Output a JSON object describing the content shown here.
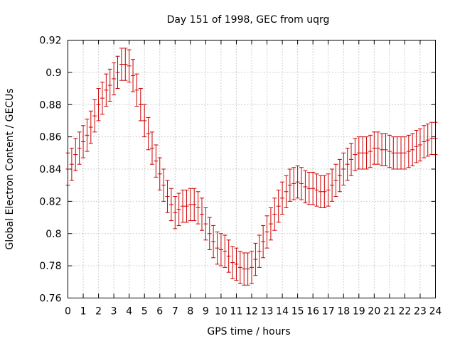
{
  "chart_data": {
    "type": "errorbar",
    "title": "Day 151 of 1998, GEC from uqrg",
    "xlabel": "GPS time / hours",
    "ylabel": "Global Electron Content / GECUs",
    "xlim": [
      0,
      24
    ],
    "ylim": [
      0.76,
      0.92
    ],
    "x_ticks": [
      "0",
      "1",
      "2",
      "3",
      "4",
      "5",
      "6",
      "7",
      "8",
      "9",
      "10",
      "11",
      "12",
      "13",
      "14",
      "15",
      "16",
      "17",
      "18",
      "19",
      "20",
      "21",
      "22",
      "23",
      "24"
    ],
    "y_ticks": [
      "0.76",
      "0.78",
      "0.8",
      "0.82",
      "0.84",
      "0.86",
      "0.88",
      "0.9",
      "0.92"
    ],
    "grid": true,
    "series": [
      {
        "name": "GEC",
        "color": "#cc0000",
        "x": [
          0,
          0.25,
          0.5,
          0.75,
          1,
          1.25,
          1.5,
          1.75,
          2,
          2.25,
          2.5,
          2.75,
          3,
          3.25,
          3.5,
          3.75,
          4,
          4.25,
          4.5,
          4.75,
          5,
          5.25,
          5.5,
          5.75,
          6,
          6.25,
          6.5,
          6.75,
          7,
          7.25,
          7.5,
          7.75,
          8,
          8.25,
          8.5,
          8.75,
          9,
          9.25,
          9.5,
          9.75,
          10,
          10.25,
          10.5,
          10.75,
          11,
          11.25,
          11.5,
          11.75,
          12,
          12.25,
          12.5,
          12.75,
          13,
          13.25,
          13.5,
          13.75,
          14,
          14.25,
          14.5,
          14.75,
          15,
          15.25,
          15.5,
          15.75,
          16,
          16.25,
          16.5,
          16.75,
          17,
          17.25,
          17.5,
          17.75,
          18,
          18.25,
          18.5,
          18.75,
          19,
          19.25,
          19.5,
          19.75,
          20,
          20.25,
          20.5,
          20.75,
          21,
          21.25,
          21.5,
          21.75,
          22,
          22.25,
          22.5,
          22.75,
          23,
          23.25,
          23.5,
          23.75,
          24
        ],
        "values": [
          0.84,
          0.843,
          0.849,
          0.853,
          0.857,
          0.861,
          0.866,
          0.873,
          0.88,
          0.884,
          0.889,
          0.892,
          0.896,
          0.9,
          0.905,
          0.905,
          0.904,
          0.898,
          0.889,
          0.88,
          0.87,
          0.862,
          0.853,
          0.845,
          0.837,
          0.83,
          0.823,
          0.818,
          0.813,
          0.815,
          0.817,
          0.817,
          0.818,
          0.818,
          0.816,
          0.812,
          0.806,
          0.8,
          0.795,
          0.791,
          0.79,
          0.789,
          0.786,
          0.782,
          0.781,
          0.779,
          0.778,
          0.778,
          0.779,
          0.784,
          0.789,
          0.795,
          0.801,
          0.806,
          0.812,
          0.817,
          0.822,
          0.826,
          0.83,
          0.831,
          0.832,
          0.831,
          0.829,
          0.828,
          0.828,
          0.827,
          0.826,
          0.826,
          0.827,
          0.83,
          0.833,
          0.836,
          0.84,
          0.843,
          0.846,
          0.849,
          0.85,
          0.85,
          0.85,
          0.851,
          0.853,
          0.853,
          0.852,
          0.852,
          0.851,
          0.85,
          0.85,
          0.85,
          0.85,
          0.851,
          0.852,
          0.854,
          0.855,
          0.857,
          0.858,
          0.859,
          0.859
        ],
        "errors": [
          0.01,
          0.01,
          0.01,
          0.01,
          0.01,
          0.01,
          0.01,
          0.01,
          0.01,
          0.01,
          0.01,
          0.01,
          0.01,
          0.01,
          0.01,
          0.01,
          0.01,
          0.01,
          0.01,
          0.01,
          0.01,
          0.01,
          0.01,
          0.01,
          0.01,
          0.01,
          0.01,
          0.01,
          0.01,
          0.01,
          0.01,
          0.01,
          0.01,
          0.01,
          0.01,
          0.01,
          0.01,
          0.01,
          0.01,
          0.01,
          0.01,
          0.01,
          0.01,
          0.01,
          0.01,
          0.01,
          0.01,
          0.01,
          0.01,
          0.01,
          0.01,
          0.01,
          0.01,
          0.01,
          0.01,
          0.01,
          0.01,
          0.01,
          0.01,
          0.01,
          0.01,
          0.01,
          0.01,
          0.01,
          0.01,
          0.01,
          0.01,
          0.01,
          0.01,
          0.01,
          0.01,
          0.01,
          0.01,
          0.01,
          0.01,
          0.01,
          0.01,
          0.01,
          0.01,
          0.01,
          0.01,
          0.01,
          0.01,
          0.01,
          0.01,
          0.01,
          0.01,
          0.01,
          0.01,
          0.01,
          0.01,
          0.01,
          0.01,
          0.01,
          0.01,
          0.01,
          0.01
        ]
      }
    ]
  }
}
